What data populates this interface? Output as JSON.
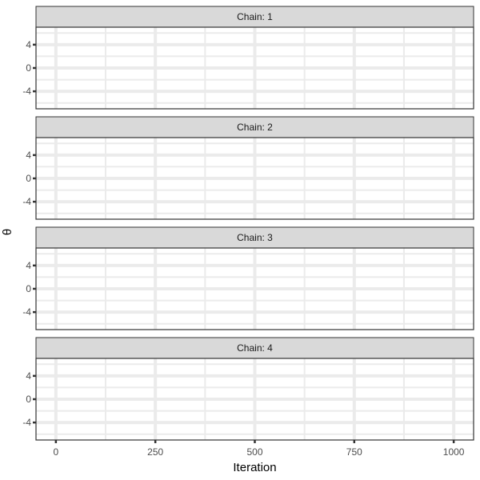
{
  "chart_data": {
    "type": "line",
    "xlabel": "Iteration",
    "ylabel": "θ",
    "xlim": [
      -50,
      1050
    ],
    "ylim": [
      -7,
      7
    ],
    "x_ticks": [
      0,
      250,
      500,
      750,
      1000
    ],
    "x_tick_labels": [
      "0",
      "250",
      "500",
      "750",
      "1000"
    ],
    "x_minor_ticks": [
      125,
      375,
      625,
      875
    ],
    "y_ticks": [
      4,
      0,
      -4
    ],
    "y_tick_labels": [
      "4",
      "0",
      "-4"
    ],
    "y_minor_ticks": [
      6,
      2,
      -2,
      -6
    ],
    "grid": true,
    "facets": [
      {
        "strip_label": "Chain: 1",
        "series": []
      },
      {
        "strip_label": "Chain: 2",
        "series": []
      },
      {
        "strip_label": "Chain: 3",
        "series": []
      },
      {
        "strip_label": "Chain: 4",
        "series": []
      }
    ],
    "colors": {
      "panel_background": "#ffffff",
      "grid": "#ebebeb",
      "panel_border": "#333333",
      "strip_background": "#d9d9d9",
      "strip_border": "#333333"
    }
  }
}
